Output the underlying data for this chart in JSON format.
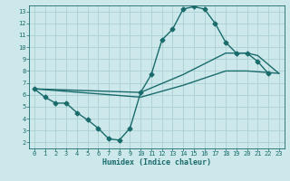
{
  "xlabel": "Humidex (Indice chaleur)",
  "bg_color": "#cce8ea",
  "grid_color": "#aad0d4",
  "line_color": "#1a6b6b",
  "xlim": [
    -0.5,
    23.5
  ],
  "ylim": [
    1.5,
    13.5
  ],
  "xticks": [
    0,
    1,
    2,
    3,
    4,
    5,
    6,
    7,
    8,
    9,
    10,
    11,
    12,
    13,
    14,
    15,
    16,
    17,
    18,
    19,
    20,
    21,
    22,
    23
  ],
  "yticks": [
    2,
    3,
    4,
    5,
    6,
    7,
    8,
    9,
    10,
    11,
    12,
    13
  ],
  "line1_x": [
    0,
    1,
    2,
    3,
    4,
    5,
    6,
    7,
    8,
    9,
    10,
    11,
    12,
    13,
    14,
    15,
    16,
    17,
    18,
    19,
    20,
    21,
    22
  ],
  "line1_y": [
    6.5,
    5.8,
    5.3,
    5.3,
    4.5,
    3.9,
    3.2,
    2.3,
    2.2,
    3.2,
    6.2,
    7.7,
    10.6,
    11.5,
    13.2,
    13.4,
    13.2,
    12.0,
    10.4,
    9.5,
    9.5,
    8.8,
    7.8
  ],
  "line2_x": [
    0,
    10,
    14,
    18,
    20,
    21,
    23
  ],
  "line2_y": [
    6.5,
    6.2,
    7.7,
    9.5,
    9.5,
    9.3,
    7.8
  ],
  "line3_x": [
    0,
    10,
    14,
    18,
    20,
    23
  ],
  "line3_y": [
    6.5,
    5.8,
    6.8,
    8.0,
    8.0,
    7.8
  ],
  "markersize": 2.5,
  "linewidth": 1.0
}
